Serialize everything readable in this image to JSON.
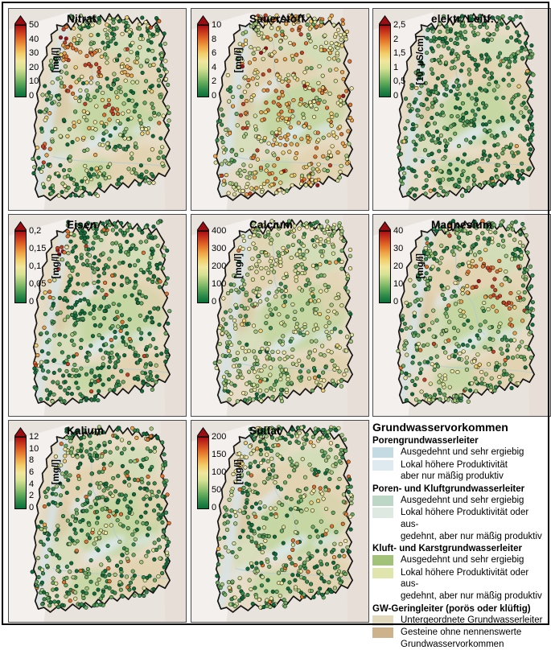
{
  "figure": {
    "kind": "groundwater-parameter-maps-baden-wuerttemberg",
    "grid": "3x3"
  },
  "panels": [
    {
      "title": "Nitrat",
      "unit": "[mg/l]",
      "ticks": [
        "50",
        "40",
        "30",
        "20",
        "10",
        "0"
      ],
      "dots": {
        "seed": 11,
        "count": 520,
        "base": 0.2,
        "noise": 0.3,
        "outlier_p": 0.012,
        "outlier_v": 0.92,
        "hotspots": [
          [
            31,
            13,
            8,
            0.95
          ],
          [
            36,
            23,
            7,
            0.93
          ],
          [
            47,
            28,
            10,
            0.9
          ],
          [
            57,
            50,
            9,
            0.85
          ],
          [
            41,
            60,
            7,
            0.85
          ],
          [
            25,
            55,
            5,
            0.9
          ],
          [
            20,
            70,
            5,
            0.92
          ],
          [
            50,
            73,
            7,
            0.65
          ],
          [
            68,
            30,
            7,
            0.7
          ],
          [
            35,
            40,
            6,
            0.88
          ]
        ]
      }
    },
    {
      "title": "Sauerstoff",
      "unit": "[mg/l]",
      "ticks": [
        "10",
        "8",
        "6",
        "4",
        "2",
        "0"
      ],
      "dots": {
        "seed": 22,
        "count": 520,
        "base": 0.58,
        "noise": 0.3,
        "outlier_p": 0.0,
        "outlier_v": 0.9,
        "hotspots": [
          [
            20,
            40,
            8,
            0.08
          ],
          [
            17,
            55,
            7,
            0.1
          ],
          [
            23,
            25,
            6,
            0.15
          ],
          [
            34,
            10,
            7,
            0.3
          ],
          [
            80,
            14,
            9,
            0.45
          ],
          [
            28,
            83,
            9,
            0.3
          ],
          [
            15,
            65,
            6,
            0.1
          ],
          [
            24,
            74,
            7,
            0.15
          ],
          [
            45,
            45,
            12,
            0.78
          ],
          [
            60,
            65,
            12,
            0.72
          ]
        ]
      }
    },
    {
      "title": "elektr. Leitf.",
      "unit": "[10³ µS/cm]",
      "ticks": [
        "2,5",
        "2",
        "1,5",
        "1",
        "0,5",
        "0"
      ],
      "dots": {
        "seed": 33,
        "count": 540,
        "base": 0.1,
        "noise": 0.13,
        "outlier_p": 0.02,
        "outlier_v": 0.72,
        "hotspots": []
      }
    },
    {
      "title": "Eisen",
      "unit": "[mg/l]",
      "ticks": [
        "0,2",
        "0,15",
        "0,1",
        "0,05",
        "0"
      ],
      "dots": {
        "seed": 44,
        "count": 520,
        "base": 0.08,
        "noise": 0.15,
        "outlier_p": 0.05,
        "outlier_v": 0.9,
        "hotspots": [
          [
            31,
            10,
            5,
            0.95
          ],
          [
            29,
            18,
            5,
            0.95
          ],
          [
            26,
            27,
            5,
            0.95
          ],
          [
            23,
            36,
            5,
            0.93
          ],
          [
            21,
            45,
            4,
            0.9
          ],
          [
            19,
            54,
            4,
            0.9
          ],
          [
            17,
            63,
            4,
            0.9
          ],
          [
            15,
            72,
            4,
            0.85
          ]
        ]
      }
    },
    {
      "title": "Calcium",
      "unit": "[mg/l]",
      "ticks": [
        "400",
        "300",
        "200",
        "100",
        "0"
      ],
      "dots": {
        "seed": 55,
        "count": 540,
        "base": 0.3,
        "noise": 0.2,
        "outlier_p": 0.03,
        "outlier_v": 0.85,
        "hotspots": [
          [
            30,
            15,
            8,
            0.45
          ],
          [
            40,
            30,
            10,
            0.4
          ]
        ]
      }
    },
    {
      "title": "Magnesium",
      "unit": "[mg/l]",
      "ticks": [
        "40",
        "30",
        "20",
        "10",
        "0"
      ],
      "dots": {
        "seed": 66,
        "count": 520,
        "base": 0.2,
        "noise": 0.22,
        "outlier_p": 0.03,
        "outlier_v": 0.9,
        "hotspots": [
          [
            62,
            32,
            13,
            0.95
          ],
          [
            73,
            42,
            10,
            0.92
          ],
          [
            55,
            44,
            8,
            0.85
          ],
          [
            68,
            22,
            8,
            0.85
          ],
          [
            45,
            80,
            10,
            0.5
          ],
          [
            60,
            74,
            8,
            0.55
          ],
          [
            80,
            55,
            8,
            0.8
          ]
        ]
      }
    },
    {
      "title": "Kalium",
      "unit": "[mg/l]",
      "ticks": [
        "12",
        "10",
        "8",
        "6",
        "4",
        "2",
        "0"
      ],
      "dots": {
        "seed": 77,
        "count": 520,
        "base": 0.13,
        "noise": 0.2,
        "outlier_p": 0.08,
        "outlier_v": 0.85,
        "hotspots": [
          [
            30,
            18,
            6,
            0.6
          ],
          [
            55,
            55,
            8,
            0.45
          ]
        ]
      }
    },
    {
      "title": "Sulfat",
      "unit": "[mg/l]",
      "ticks": [
        "200",
        "150",
        "100",
        "50",
        "0"
      ],
      "dots": {
        "seed": 88,
        "count": 520,
        "base": 0.18,
        "noise": 0.24,
        "outlier_p": 0.06,
        "outlier_v": 0.85,
        "hotspots": [
          [
            30,
            13,
            7,
            0.55
          ],
          [
            27,
            22,
            6,
            0.6
          ],
          [
            24,
            31,
            5,
            0.5
          ],
          [
            70,
            40,
            9,
            0.6
          ]
        ]
      }
    }
  ],
  "legend": {
    "title": "Grundwasservorkommen",
    "sections": [
      {
        "heading": "Porengrundwasserleiter",
        "items": [
          {
            "color": "#c5dbe4",
            "lines": [
              "Ausgedehnt und sehr ergiebig"
            ]
          },
          {
            "color": "#dfeaf0",
            "lines": [
              "Lokal höhere Produktivität",
              "aber nur mäßig produktiv"
            ]
          }
        ]
      },
      {
        "heading": "Poren- und Kluftgrundwasserleiter",
        "items": [
          {
            "color": "#bcd7c6",
            "lines": [
              "Ausgedehnt und sehr ergiebig"
            ]
          },
          {
            "color": "#dde9e1",
            "lines": [
              "Lokal höhere Produktivität oder aus-",
              "gedehnt, aber nur mäßig produktiv"
            ]
          }
        ]
      },
      {
        "heading": "Kluft- und Karstgrundwasserleiter",
        "items": [
          {
            "color": "#a3c279",
            "lines": [
              "Ausgedehnt und sehr ergiebig"
            ]
          },
          {
            "color": "#dfe5ac",
            "lines": [
              "Lokal höhere Produktivität oder aus-",
              "gedehnt, aber nur mäßig produktiv"
            ]
          }
        ]
      },
      {
        "heading": "GW-Geringleiter (porös oder klüftig)",
        "items": [
          {
            "color": "#e2d9bd",
            "lines": [
              "Untergeordnete Grundwasserleiter"
            ]
          },
          {
            "color": "#cdb28c",
            "lines": [
              "Gesteine ohne nennenswerte",
              "Grundwasservorkommen"
            ]
          }
        ]
      }
    ]
  },
  "colors": {
    "ramp": [
      "#0a6e38",
      "#2f8c4a",
      "#66ad5c",
      "#a3ca79",
      "#d8e294",
      "#efe79d",
      "#f2cf6b",
      "#efa446",
      "#e37128",
      "#cc3d1d",
      "#a90f15"
    ],
    "arrow": "#9a0d12",
    "map": {
      "outside": "#e9e3de",
      "outside_east": "#e7dad3",
      "outside_west": "#f3f0ed",
      "state_base": "#e7dcc5",
      "green": "#c6d7a4",
      "green_light": "#d2ddb8",
      "tan": "#e2d3b1",
      "tan_dark": "#dbc9a4",
      "water": "#dde8ec",
      "lake": "#b7d5e2",
      "rhine": "#d6e4e8",
      "river": "#afc9d6",
      "outline": "#141414"
    }
  }
}
